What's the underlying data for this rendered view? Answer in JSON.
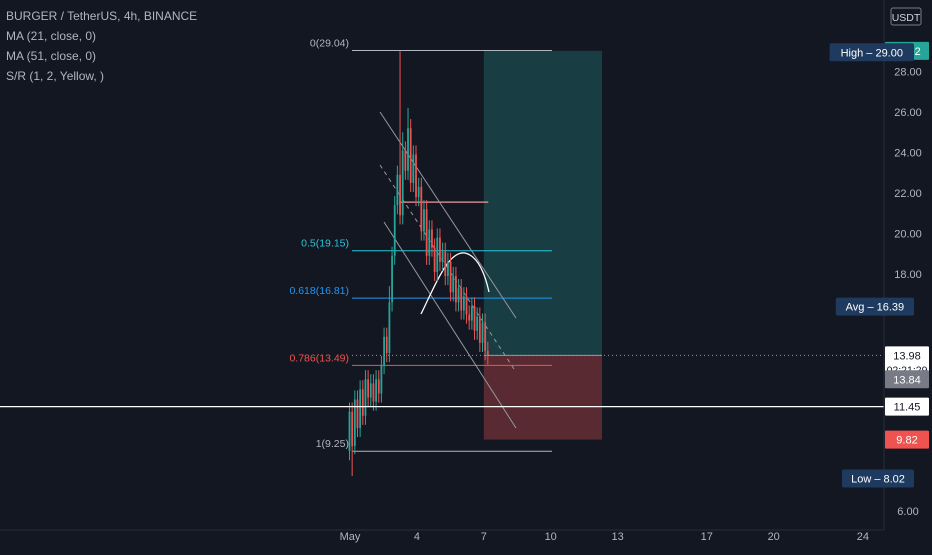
{
  "chart_data": {
    "type": "candlestick",
    "symbol_line": "BURGER / TetherUS, 4h, BINANCE",
    "indicators": [
      "MA (21, close, 0)",
      "MA (51, close, 0)",
      "S/R (1, 2, Yellow, )"
    ],
    "currency": "USDT",
    "y_ticks": [
      "28.00",
      "26.00",
      "24.00",
      "22.00",
      "20.00",
      "18.00",
      "6.00"
    ],
    "x_ticks": [
      {
        "label": "May",
        "day": 1
      },
      {
        "label": "4",
        "day": 4
      },
      {
        "label": "7",
        "day": 7
      },
      {
        "label": "10",
        "day": 10
      },
      {
        "label": "13",
        "day": 13
      },
      {
        "label": "17",
        "day": 17
      },
      {
        "label": "20",
        "day": 20
      },
      {
        "label": "24",
        "day": 24
      }
    ],
    "fib_levels": [
      {
        "label": "0(29.04)",
        "value": 29.04,
        "color": "#b2b5be"
      },
      {
        "label": "0.5(19.15)",
        "value": 19.15,
        "color": "#26c6da"
      },
      {
        "label": "0.618(16.81)",
        "value": 16.81,
        "color": "#2196f3"
      },
      {
        "label": "0.786(13.49)",
        "value": 13.49,
        "color": "#ef5350"
      },
      {
        "label": "1(9.25)",
        "value": 9.25,
        "color": "#b2b5be"
      }
    ],
    "price_badges": [
      {
        "label": "29.02",
        "value": 29.02,
        "bg": "#26a69a",
        "fg": "#ffffff"
      },
      {
        "label": "High – 29.00",
        "value": 28.95,
        "bg": "#1e3a5f",
        "fg": "#ffffff"
      },
      {
        "label": "Avg – 16.39",
        "value": 16.39,
        "bg": "#1e3a5f",
        "fg": "#ffffff"
      },
      {
        "label": "13.98",
        "value": 13.98,
        "sub": "02:21:29",
        "bg": "#ffffff",
        "fg": "#131722"
      },
      {
        "label": "13.84",
        "value": 12.8,
        "bg": "#787b86",
        "fg": "#ffffff"
      },
      {
        "label": "11.45",
        "value": 11.45,
        "bg": "#ffffff",
        "fg": "#131722"
      },
      {
        "label": "9.82",
        "value": 9.82,
        "bg": "#ef5350",
        "fg": "#ffffff"
      },
      {
        "label": "Low – 8.02",
        "value": 7.9,
        "bg": "#1e3a5f",
        "fg": "#ffffff"
      }
    ],
    "horizontal_line": {
      "value": 11.45,
      "color": "#ffffff"
    },
    "position": {
      "entry": 13.98,
      "target": 29.02,
      "stop": 9.82,
      "start_day": 7.0,
      "end_day": 12.3
    },
    "resistance_short": {
      "value": 21.55,
      "start_day": 3.2,
      "end_day": 7.2,
      "color": "#ef9a9a"
    },
    "colors": {
      "up": "#26a69a",
      "down": "#ef5350",
      "background": "#131722",
      "text": "#b2b5be"
    }
  }
}
